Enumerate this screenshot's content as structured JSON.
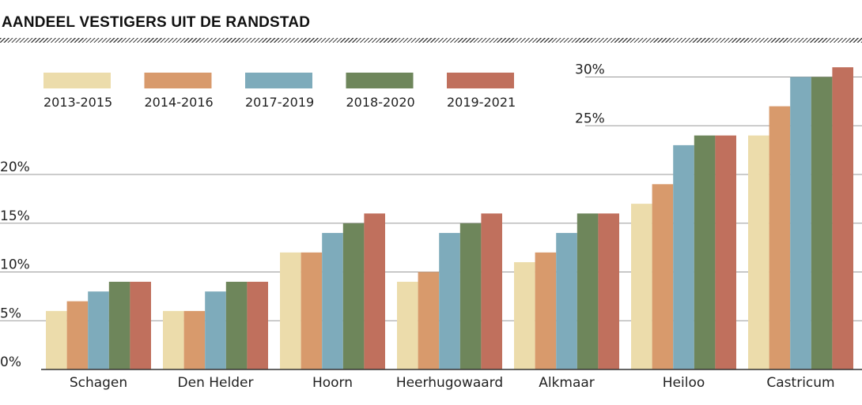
{
  "chart_data": {
    "type": "bar",
    "title": "AANDEEL VESTIGERS UIT DE RANDSTAD",
    "xlabel": "",
    "ylabel": "",
    "ylim": [
      0,
      31
    ],
    "y_ticks": [
      {
        "value": 0,
        "label": "0%"
      },
      {
        "value": 5,
        "label": "5%"
      },
      {
        "value": 10,
        "label": "10%"
      },
      {
        "value": 15,
        "label": "15%"
      },
      {
        "value": 20,
        "label": "20%"
      },
      {
        "value": 25,
        "label": "25%"
      },
      {
        "value": 30,
        "label": "30%"
      }
    ],
    "categories": [
      "Schagen",
      "Den Helder",
      "Hoorn",
      "Heerhugowaard",
      "Alkmaar",
      "Heiloo",
      "Castricum"
    ],
    "series": [
      {
        "name": "2013-2015",
        "color": "#ecdcab",
        "values": [
          6,
          6,
          12,
          9,
          11,
          17,
          24
        ]
      },
      {
        "name": "2014-2016",
        "color": "#d89a6c",
        "values": [
          7,
          6,
          12,
          10,
          12,
          19,
          27
        ]
      },
      {
        "name": "2017-2019",
        "color": "#7eabbb",
        "values": [
          8,
          8,
          14,
          14,
          14,
          23,
          30
        ]
      },
      {
        "name": "2018-2020",
        "color": "#6e865b",
        "values": [
          9,
          9,
          15,
          15,
          16,
          24,
          30
        ]
      },
      {
        "name": "2019-2021",
        "color": "#c0705d",
        "values": [
          9,
          9,
          16,
          16,
          16,
          24,
          31
        ]
      }
    ],
    "legend_position": "top-left"
  }
}
